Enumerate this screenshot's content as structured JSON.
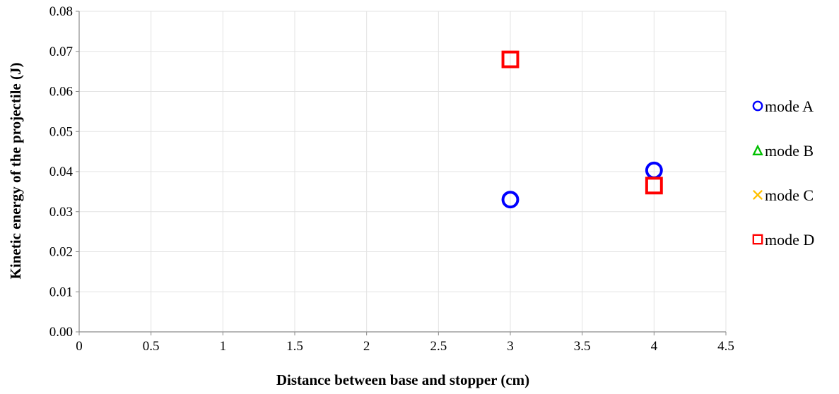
{
  "chart_data": {
    "type": "scatter",
    "xlabel": "Distance between base and stopper (cm)",
    "ylabel": "Kinetic energy of the projectile (J)",
    "xlim": [
      0,
      4.5
    ],
    "ylim": [
      0,
      0.08
    ],
    "x_ticks": [
      "0",
      "0.5",
      "1",
      "1.5",
      "2",
      "2.5",
      "3",
      "3.5",
      "4",
      "4.5"
    ],
    "y_ticks": [
      "0.00",
      "0.01",
      "0.02",
      "0.03",
      "0.04",
      "0.05",
      "0.06",
      "0.07",
      "0.08"
    ],
    "grid": true,
    "legend_position": "right",
    "series": [
      {
        "name": "mode A",
        "marker": "circle",
        "color": "#0000ff",
        "points": [
          {
            "x": 3,
            "y": 0.033
          },
          {
            "x": 4,
            "y": 0.0403
          }
        ]
      },
      {
        "name": "mode B",
        "marker": "triangle",
        "color": "#00c000",
        "points": []
      },
      {
        "name": "mode C",
        "marker": "x",
        "color": "#ffc000",
        "points": []
      },
      {
        "name": "mode D",
        "marker": "square",
        "color": "#ff0000",
        "points": [
          {
            "x": 3,
            "y": 0.068
          },
          {
            "x": 4,
            "y": 0.0365
          }
        ]
      }
    ]
  }
}
